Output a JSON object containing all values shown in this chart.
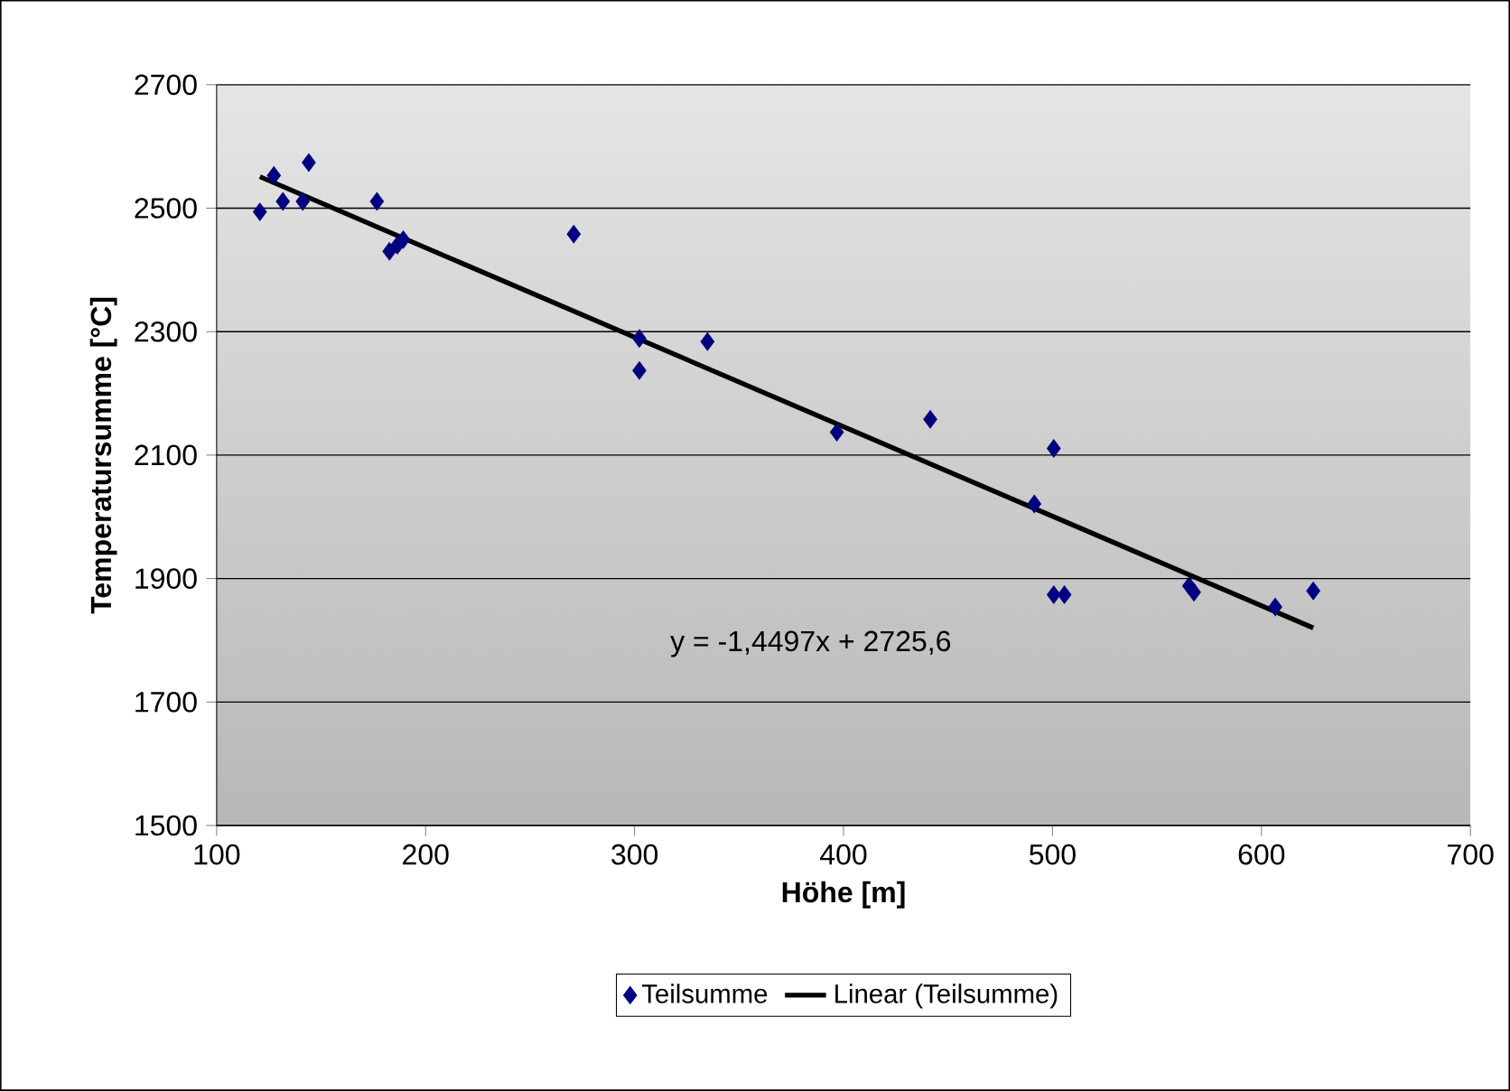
{
  "chart_data": {
    "type": "scatter",
    "xlabel": "Höhe [m]",
    "ylabel": "Temperatursumme [°C]",
    "series": [
      {
        "name": "Teilsumme",
        "color": "#000080",
        "marker": "diamond",
        "x": [
          120.7,
          127.4,
          131.7,
          141.2,
          144.1,
          176.7,
          182.7,
          186.5,
          189.3,
          270.9,
          302.3,
          302.3,
          334.9,
          396.8,
          441.5,
          500.6,
          491.3,
          500.6,
          505.7,
          565.4,
          567.7,
          606.6,
          624.8
        ],
        "values": [
          2494,
          2553,
          2511,
          2511,
          2574,
          2511,
          2430,
          2440,
          2449,
          2458,
          2289,
          2237,
          2284,
          2137,
          2158,
          2111,
          2021,
          1874,
          1874,
          1888,
          1878,
          1854,
          1880
        ]
      },
      {
        "name": "Linear (Teilsumme)",
        "type": "line",
        "color": "#000000",
        "line_style": "solid",
        "marker": "none",
        "x": [
          120.7,
          624.8
        ],
        "values": [
          2551,
          1820
        ]
      }
    ],
    "annotations": [
      "y = -1,4497x + 2725,6"
    ],
    "xlim": [
      100,
      700
    ],
    "xticks": [
      100,
      200,
      300,
      400,
      500,
      600,
      700
    ],
    "ylim": [
      1500,
      2700
    ],
    "yticks": [
      1500,
      1700,
      1900,
      2100,
      2300,
      2500,
      2700
    ],
    "grid": "y",
    "legend": "bottom"
  }
}
